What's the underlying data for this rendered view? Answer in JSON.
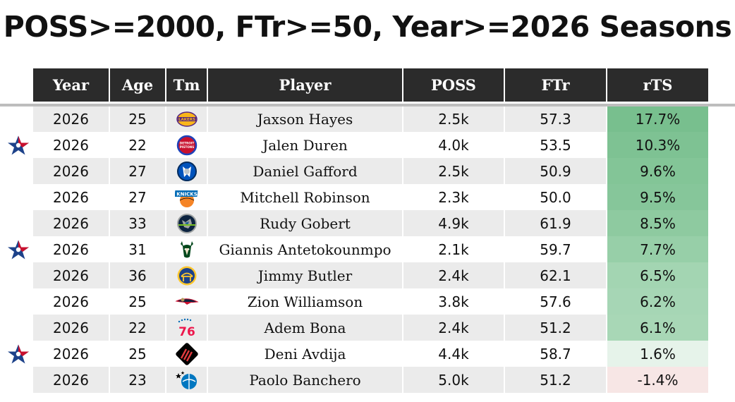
{
  "title": "POSS>=2000, FTr>=50, Year>=2026 Seasons",
  "columns": [
    "Year",
    "Age",
    "Tm",
    "Player",
    "POSS",
    "FTr",
    "rTS"
  ],
  "rows": [
    {
      "year": "2026",
      "age": "25",
      "team_icon": "lakers-logo-icon",
      "player": "Jaxson Hayes",
      "poss": "2.5k",
      "ftr": "57.3",
      "rts": "17.7%",
      "rts_color": "#78bf8e",
      "allstar": false
    },
    {
      "year": "2026",
      "age": "22",
      "team_icon": "pistons-logo-icon",
      "player": "Jalen Duren",
      "poss": "4.0k",
      "ftr": "53.5",
      "rts": "10.3%",
      "rts_color": "#7ec293",
      "allstar": true
    },
    {
      "year": "2026",
      "age": "27",
      "team_icon": "mavericks-logo-icon",
      "player": "Daniel Gafford",
      "poss": "2.5k",
      "ftr": "50.9",
      "rts": "9.6%",
      "rts_color": "#83c597",
      "allstar": false
    },
    {
      "year": "2026",
      "age": "27",
      "team_icon": "knicks-logo-icon",
      "player": "Mitchell Robinson",
      "poss": "2.3k",
      "ftr": "50.0",
      "rts": "9.5%",
      "rts_color": "#86c69a",
      "allstar": false
    },
    {
      "year": "2026",
      "age": "33",
      "team_icon": "timberwolves-logo-icon",
      "player": "Rudy Gobert",
      "poss": "4.9k",
      "ftr": "61.9",
      "rts": "8.5%",
      "rts_color": "#8ecaa0",
      "allstar": false
    },
    {
      "year": "2026",
      "age": "31",
      "team_icon": "bucks-logo-icon",
      "player": "Giannis Antetokounmpo",
      "poss": "2.1k",
      "ftr": "59.7",
      "rts": "7.7%",
      "rts_color": "#97cfa8",
      "allstar": true
    },
    {
      "year": "2026",
      "age": "36",
      "team_icon": "warriors-logo-icon",
      "player": "Jimmy Butler",
      "poss": "2.4k",
      "ftr": "62.1",
      "rts": "6.5%",
      "rts_color": "#a3d5b2",
      "allstar": false
    },
    {
      "year": "2026",
      "age": "25",
      "team_icon": "pelicans-logo-icon",
      "player": "Zion Williamson",
      "poss": "3.8k",
      "ftr": "57.6",
      "rts": "6.2%",
      "rts_color": "#a6d6b5",
      "allstar": false
    },
    {
      "year": "2026",
      "age": "22",
      "team_icon": "sixers-logo-icon",
      "player": "Adem Bona",
      "poss": "2.4k",
      "ftr": "51.2",
      "rts": "6.1%",
      "rts_color": "#a8d7b6",
      "allstar": false
    },
    {
      "year": "2026",
      "age": "25",
      "team_icon": "blazers-logo-icon",
      "player": "Deni Avdija",
      "poss": "4.4k",
      "ftr": "58.7",
      "rts": "1.6%",
      "rts_color": "#e6f3ea",
      "allstar": true
    },
    {
      "year": "2026",
      "age": "23",
      "team_icon": "magic-logo-icon",
      "player": "Paolo Banchero",
      "poss": "5.0k",
      "ftr": "51.2",
      "rts": "-1.4%",
      "rts_color": "#f7e6e5",
      "allstar": false
    }
  ],
  "allstar_icon": "nba-allstar-icon"
}
